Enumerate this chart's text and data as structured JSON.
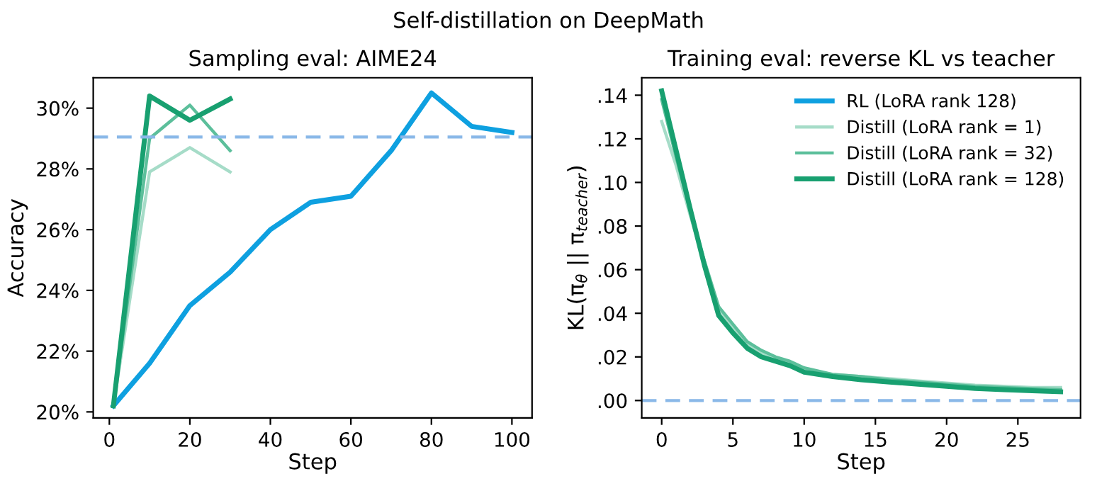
{
  "chart_data": [
    {
      "type": "line",
      "title": "Sampling eval: AIME24",
      "annotations": [
        "Self-distillation on DeepMath"
      ],
      "xlabel": "Step",
      "ylabel": "Accuracy",
      "series": [
        {
          "color": "#0ea0e0",
          "x": [
            1,
            10,
            20,
            30,
            40,
            50,
            60,
            70,
            80,
            90,
            100
          ],
          "values": [
            20.2,
            21.6,
            23.5,
            24.6,
            26.0,
            26.9,
            27.1,
            28.6,
            30.5,
            29.4,
            29.2
          ]
        },
        {
          "color": "#a6dcc8",
          "x": [
            1,
            10,
            20,
            30
          ],
          "values": [
            20.2,
            27.9,
            28.7,
            27.9
          ]
        },
        {
          "color": "#5cbf9b",
          "x": [
            1,
            10,
            20,
            30
          ],
          "values": [
            20.2,
            29.0,
            30.1,
            28.6
          ]
        },
        {
          "color": "#18a070",
          "x": [
            1,
            10,
            20,
            30
          ],
          "values": [
            20.2,
            30.4,
            29.6,
            30.3
          ]
        }
      ],
      "xlim": [
        -4,
        105
      ],
      "xticks": [
        0,
        20,
        40,
        60,
        80,
        100
      ],
      "ylim": [
        19.8,
        31.0
      ],
      "yticks": [
        {
          "value": 20,
          "label": "20%"
        },
        {
          "value": 22,
          "label": "22%"
        },
        {
          "value": 24,
          "label": "24%"
        },
        {
          "value": 26,
          "label": "26%"
        },
        {
          "value": 28,
          "label": "28%"
        },
        {
          "value": 30,
          "label": "30%"
        }
      ],
      "ref_lines": [
        {
          "axis": "y",
          "value": 29.05,
          "color": "#8ab8e8",
          "line_style": "dashed"
        }
      ],
      "grid": false,
      "legend": false
    },
    {
      "type": "line",
      "title": "Training eval: reverse KL vs teacher",
      "xlabel": "Step",
      "ylabel": "KL(π$_{θ}$ || π$_{teacher}$)",
      "series": [
        {
          "name": "RL (LoRA rank 128)",
          "color": "#0ea0e0"
        },
        {
          "name": "Distill (LoRA rank = 1)",
          "color": "#a6dcc8",
          "x": [
            0,
            1,
            2,
            3,
            4,
            5,
            6,
            7,
            8,
            9,
            10,
            12,
            14,
            16,
            18,
            20,
            22,
            24,
            26,
            28
          ],
          "values": [
            0.128,
            0.108,
            0.085,
            0.063,
            0.041,
            0.033,
            0.026,
            0.022,
            0.019,
            0.017,
            0.014,
            0.012,
            0.011,
            0.01,
            0.009,
            0.008,
            0.007,
            0.0065,
            0.006,
            0.006
          ]
        },
        {
          "name": "Distill (LoRA rank = 32)",
          "color": "#5cbf9b",
          "x": [
            0,
            1,
            2,
            3,
            4,
            5,
            6,
            7,
            8,
            9,
            10,
            12,
            14,
            16,
            18,
            20,
            22,
            24,
            26,
            28
          ],
          "values": [
            0.138,
            0.112,
            0.087,
            0.064,
            0.043,
            0.035,
            0.027,
            0.023,
            0.02,
            0.018,
            0.015,
            0.012,
            0.011,
            0.0095,
            0.0085,
            0.0075,
            0.0065,
            0.006,
            0.0055,
            0.005
          ]
        },
        {
          "name": "Distill (LoRA rank = 128)",
          "color": "#18a070",
          "x": [
            0,
            1,
            2,
            3,
            4,
            5,
            6,
            7,
            8,
            9,
            10,
            12,
            14,
            16,
            18,
            20,
            22,
            24,
            26,
            28
          ],
          "values": [
            0.142,
            0.115,
            0.088,
            0.062,
            0.039,
            0.031,
            0.024,
            0.02,
            0.018,
            0.016,
            0.013,
            0.011,
            0.0095,
            0.0085,
            0.0075,
            0.0065,
            0.0055,
            0.005,
            0.0045,
            0.004
          ]
        }
      ],
      "xlim": [
        -1.4,
        29.4
      ],
      "xticks": [
        0,
        5,
        10,
        15,
        20,
        25
      ],
      "ylim": [
        -0.008,
        0.148
      ],
      "yticks": [
        {
          "value": 0,
          "label": ".00"
        },
        {
          "value": 0.02,
          "label": ".02"
        },
        {
          "value": 0.04,
          "label": ".04"
        },
        {
          "value": 0.06,
          "label": ".06"
        },
        {
          "value": 0.08,
          "label": ".08"
        },
        {
          "value": 0.1,
          "label": ".10"
        },
        {
          "value": 0.12,
          "label": ".12"
        },
        {
          "value": 0.14,
          "label": ".14"
        }
      ],
      "ref_lines": [
        {
          "axis": "y",
          "value": 0,
          "color": "#8ab8e8",
          "line_style": "dashed"
        }
      ],
      "grid": false,
      "legend": "top right"
    }
  ]
}
